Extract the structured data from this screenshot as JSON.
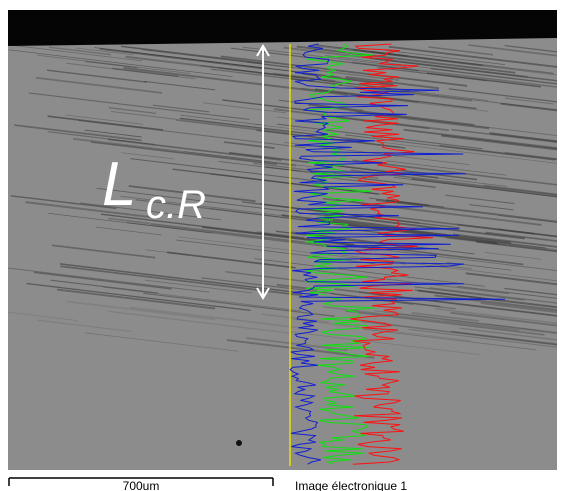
{
  "annotation": {
    "symbol": "L",
    "subscript": "c.R"
  },
  "scale_bar": {
    "label": "700um"
  },
  "caption": "Image électronique 1"
}
